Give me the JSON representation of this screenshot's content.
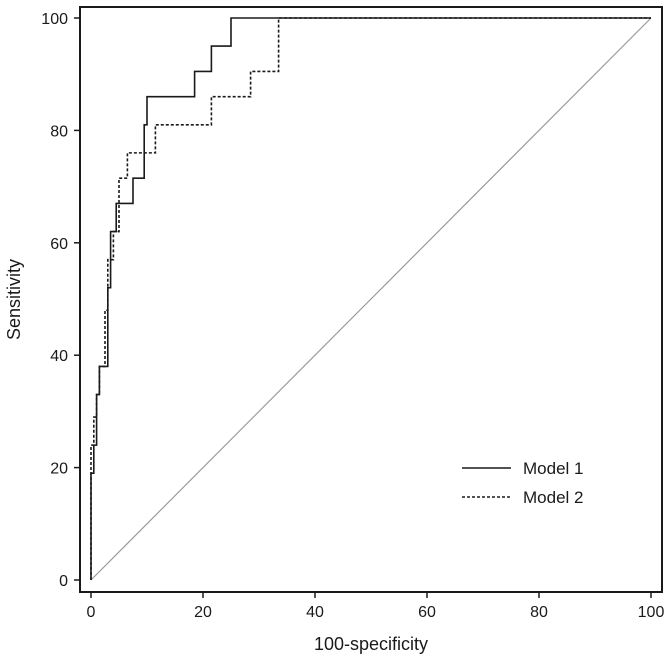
{
  "chart_data": {
    "type": "line",
    "title": "",
    "xlabel": "100-specificity",
    "ylabel": "Sensitivity",
    "xlim": [
      0,
      100
    ],
    "ylim": [
      0,
      100
    ],
    "xticks": [
      "0",
      "20",
      "40",
      "60",
      "80",
      "100"
    ],
    "yticks": [
      "0",
      "20",
      "40",
      "60",
      "80",
      "100"
    ],
    "grid": false,
    "legend_position": "bottom-right",
    "diagonal_reference": {
      "x": [
        0,
        100
      ],
      "y": [
        0,
        100
      ],
      "color": "#9a9a9a"
    },
    "series": [
      {
        "name": "Model 1",
        "style": "solid",
        "color": "#1a1a1a",
        "x": [
          0,
          0,
          0.5,
          0.5,
          1,
          1,
          1.5,
          1.5,
          3,
          3,
          3.5,
          3.5,
          4.5,
          4.5,
          7.5,
          7.5,
          9.5,
          9.5,
          10,
          10,
          18.5,
          18.5,
          21.5,
          21.5,
          25,
          25,
          100
        ],
        "y": [
          0,
          19,
          19,
          24,
          24,
          33,
          33,
          38,
          38,
          52,
          52,
          62,
          62,
          67,
          67,
          71.5,
          71.5,
          81,
          81,
          86,
          86,
          90.5,
          90.5,
          95,
          95,
          100,
          100
        ]
      },
      {
        "name": "Model 2",
        "style": "dashed",
        "color": "#1a1a1a",
        "x": [
          0,
          0,
          0.5,
          0.5,
          1,
          1,
          1.5,
          1.5,
          2.5,
          2.5,
          3,
          3,
          4,
          4,
          5,
          5,
          6.5,
          6.5,
          11.5,
          11.5,
          21.5,
          21.5,
          28.5,
          28.5,
          33.5,
          33.5,
          100
        ],
        "y": [
          0,
          24,
          24,
          29,
          29,
          33,
          33,
          38,
          38,
          48,
          48,
          57,
          57,
          62,
          62,
          71.5,
          71.5,
          76,
          76,
          81,
          81,
          86,
          86,
          90.5,
          90.5,
          100,
          100
        ]
      }
    ]
  }
}
